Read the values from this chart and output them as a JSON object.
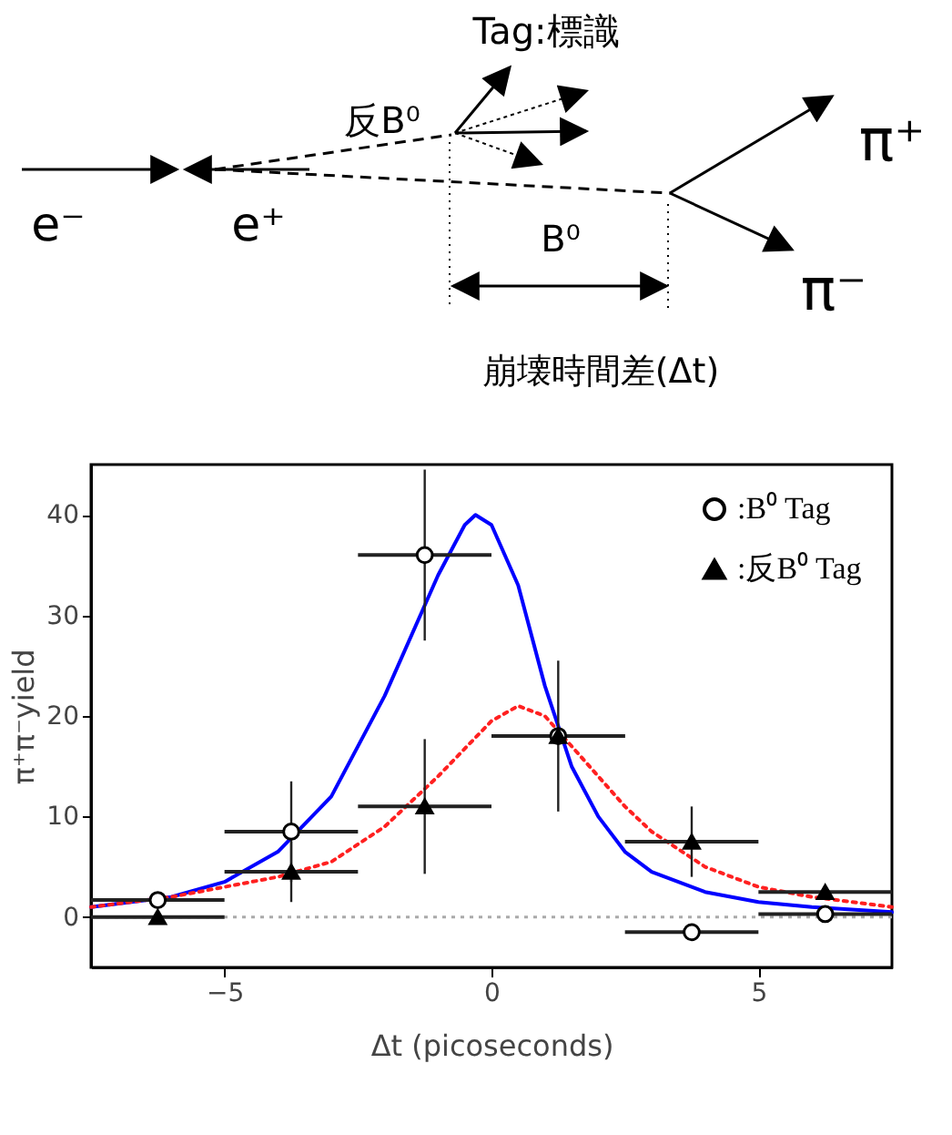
{
  "chart_data": {
    "type": "scatter",
    "xlabel": "Δt (picoseconds)",
    "ylabel": "π⁺π⁻yield",
    "xlim": [
      -7.5,
      7.5
    ],
    "ylim": [
      -5,
      45
    ],
    "xticks": [
      -5,
      0,
      5
    ],
    "yticks": [
      0,
      10,
      20,
      30,
      40
    ],
    "grid": false,
    "legend": "top right",
    "annotations": [
      "Tag:標識",
      "反B⁰",
      "e⁻",
      "e⁺",
      "B⁰",
      "π⁺",
      "π⁻",
      "崩壊時間差(Δt)"
    ],
    "ref_lines": [
      {
        "axis": "y",
        "value": 0,
        "color": "#aaaaaa",
        "line_style": "dotted"
      }
    ],
    "series": [
      {
        "name": ":B⁰ Tag",
        "type": "scatter",
        "marker": "circle",
        "color": "#000000",
        "x": [
          -6.25,
          -3.75,
          -1.25,
          1.25,
          3.75,
          6.25
        ],
        "values": [
          1.7,
          8.5,
          36,
          18,
          -1.5,
          0.3
        ],
        "errors": [
          null,
          5,
          8.5,
          7.5,
          null,
          null
        ],
        "xerrors": [
          1.25,
          1.25,
          1.25,
          1.25,
          1.25,
          1.25
        ]
      },
      {
        "name": ":反B⁰ Tag",
        "type": "scatter",
        "marker": "triangle",
        "color": "#000000",
        "x": [
          -6.25,
          -3.75,
          -1.25,
          1.25,
          3.75,
          6.25
        ],
        "values": [
          0,
          4.5,
          11,
          18,
          7.5,
          2.5
        ],
        "errors": [
          null,
          3,
          6.7,
          null,
          3.5,
          null
        ],
        "xerrors": [
          1.25,
          1.25,
          1.25,
          1.25,
          1.25,
          1.25
        ]
      },
      {
        "type": "line",
        "color": "#0000ff",
        "line_style": "solid",
        "x": [
          -7.5,
          -6,
          -5,
          -4,
          -3,
          -2,
          -1,
          -0.5,
          -0.3,
          0,
          0.5,
          1,
          1.5,
          2,
          2.5,
          3,
          4,
          5,
          6,
          7.5
        ],
        "values": [
          1,
          2,
          3.5,
          6.5,
          12,
          22,
          34,
          39,
          40,
          39,
          33,
          23,
          15,
          10,
          6.5,
          4.5,
          2.5,
          1.5,
          1,
          0.5
        ]
      },
      {
        "type": "line",
        "color": "#ff2020",
        "line_style": "dotted",
        "x": [
          -7.5,
          -6,
          -5,
          -4,
          -3,
          -2,
          -1,
          0,
          0.5,
          1,
          1.5,
          2,
          2.5,
          3,
          4,
          5,
          6,
          7.5
        ],
        "values": [
          1,
          2,
          3,
          4,
          5.5,
          9,
          14,
          19.5,
          21,
          20,
          17,
          14,
          11,
          8.5,
          5,
          3,
          2,
          1
        ]
      }
    ]
  }
}
